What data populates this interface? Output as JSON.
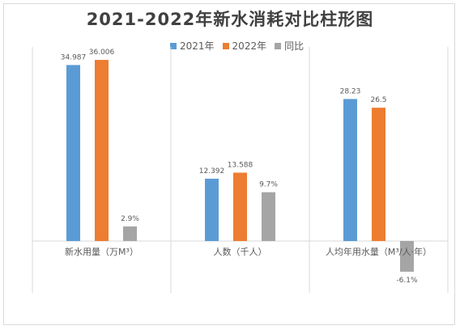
{
  "title": "2021-2022年新水消耗对比柱形图",
  "legend": [
    {
      "label": "2021年",
      "color": "#5B9BD5"
    },
    {
      "label": "2022年",
      "color": "#ED7D31"
    },
    {
      "label": "同比",
      "color": "#A5A5A5"
    }
  ],
  "chart_data": {
    "type": "bar",
    "title": "2021-2022年新水消耗对比柱形图",
    "categories": [
      "新水用量（万M³）",
      "人数（千人）",
      "人均年用水量（M³/人·年）"
    ],
    "series": [
      {
        "name": "2021年",
        "color": "#5B9BD5",
        "values": [
          34.987,
          12.392,
          28.23
        ],
        "labels": [
          "34.987",
          "12.392",
          "28.23"
        ]
      },
      {
        "name": "2022年",
        "color": "#ED7D31",
        "values": [
          36.006,
          13.588,
          26.5
        ],
        "labels": [
          "36.006",
          "13.588",
          "26.5"
        ]
      },
      {
        "name": "同比",
        "color": "#A5A5A5",
        "values": [
          2.9,
          9.7,
          -6.1
        ],
        "labels": [
          "2.9%",
          "9.7%",
          "-6.1%"
        ]
      }
    ],
    "legend_position": "top-right",
    "grid": false
  }
}
